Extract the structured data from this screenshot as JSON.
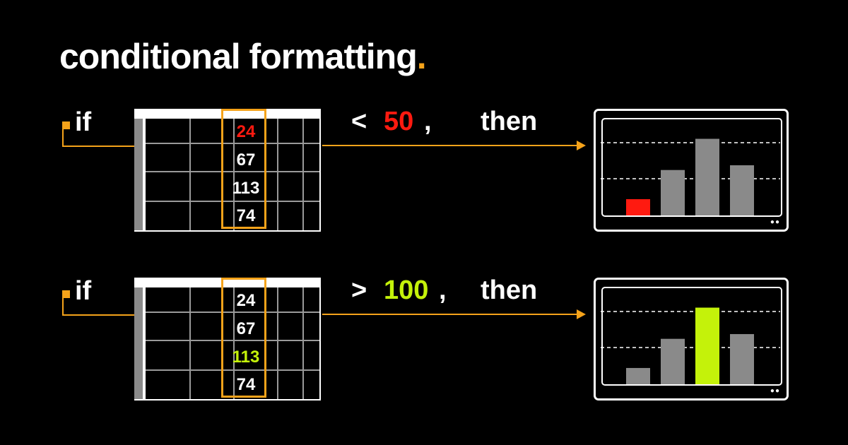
{
  "title": {
    "text": "conditional formatting",
    "dot": "."
  },
  "accent": "#f5a31a",
  "rules": [
    {
      "if_label": "if",
      "operator": "<",
      "threshold": "50",
      "threshold_color": "#ff1a10",
      "comma": ",",
      "then_label": "then",
      "cells": [
        "24",
        "67",
        "113",
        "74"
      ],
      "highlight_index": 0,
      "highlight_color": "#ff1a10",
      "chart_data": {
        "type": "bar",
        "categories": [
          "",
          "",
          "",
          ""
        ],
        "values": [
          24,
          67,
          113,
          74
        ],
        "highlight_index": 0,
        "highlight_color": "#ff1a10",
        "base_color": "#8a8a8a",
        "gridlines": true
      }
    },
    {
      "if_label": "if",
      "operator": ">",
      "threshold": "100",
      "threshold_color": "#c4f20a",
      "comma": ",",
      "then_label": "then",
      "cells": [
        "24",
        "67",
        "113",
        "74"
      ],
      "highlight_index": 2,
      "highlight_color": "#c4f20a",
      "chart_data": {
        "type": "bar",
        "categories": [
          "",
          "",
          "",
          ""
        ],
        "values": [
          24,
          67,
          113,
          74
        ],
        "highlight_index": 2,
        "highlight_color": "#c4f20a",
        "base_color": "#8a8a8a",
        "gridlines": true
      }
    }
  ]
}
